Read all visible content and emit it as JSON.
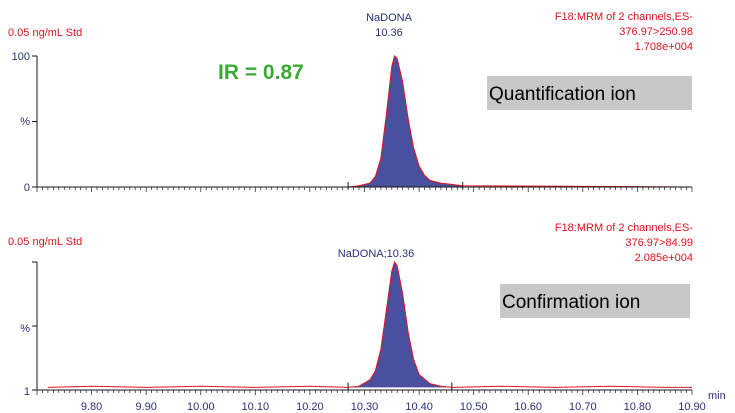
{
  "colors": {
    "trace": "#e0141e",
    "peak_fill": "#4a4f9e",
    "axis": "#1a1a1a",
    "label_blue": "#2b2f7a",
    "label_red": "#e0141e",
    "ir_green": "#3aaa35",
    "ion_box": "#c8c8c8"
  },
  "chart_data": [
    {
      "type": "line",
      "sample_label": "0.05 ng/mL Std",
      "peak_label_name": "NaDONA",
      "peak_label_rt": "10.36",
      "channel_info": [
        "F18:MRM of 2 channels,ES-",
        "376.97>250.98",
        "1.708e+004"
      ],
      "ion_label": "Quantification ion",
      "ratio_label": "IR = 0.87",
      "y_ticks": [
        "100",
        "%",
        "0"
      ],
      "xlim": [
        9.7,
        10.9
      ],
      "ylim": [
        0,
        100
      ],
      "baseline": 0,
      "peak": {
        "apex": 10.355,
        "height": 100,
        "start": 10.27,
        "end": 10.48
      },
      "x": [
        9.72,
        10.27,
        10.29,
        10.31,
        10.32,
        10.33,
        10.34,
        10.35,
        10.355,
        10.36,
        10.37,
        10.38,
        10.39,
        10.4,
        10.41,
        10.42,
        10.44,
        10.46,
        10.48,
        10.9
      ],
      "y": [
        0,
        0,
        1,
        3,
        8,
        22,
        55,
        92,
        100,
        98,
        80,
        52,
        30,
        16,
        9,
        5,
        3,
        2,
        1,
        0
      ]
    },
    {
      "type": "line",
      "sample_label": "0.05 ng/mL Std",
      "peak_label": "NaDONA;10.36",
      "channel_info": [
        "F18:MRM of 2 channels,ES-",
        "376.97>84.99",
        "2.085e+004"
      ],
      "ion_label": "Confirmation ion",
      "y_ticks": [
        "%",
        "1"
      ],
      "xlim": [
        9.7,
        10.9
      ],
      "ylim": [
        0,
        100
      ],
      "baseline": 2,
      "peak": {
        "apex": 10.355,
        "height": 100,
        "start": 10.27,
        "end": 10.46
      },
      "x": [
        9.72,
        9.8,
        9.9,
        10.0,
        10.1,
        10.2,
        10.27,
        10.29,
        10.31,
        10.32,
        10.33,
        10.34,
        10.35,
        10.355,
        10.36,
        10.37,
        10.38,
        10.39,
        10.4,
        10.42,
        10.44,
        10.46,
        10.55,
        10.65,
        10.75,
        10.85,
        10.9
      ],
      "y": [
        2,
        3,
        2,
        3,
        2,
        3,
        2,
        3,
        8,
        15,
        32,
        62,
        93,
        100,
        97,
        75,
        45,
        24,
        12,
        5,
        3,
        2,
        3,
        2,
        3,
        2,
        2
      ]
    }
  ],
  "x_axis": {
    "ticks": [
      "9.80",
      "9.90",
      "10.00",
      "10.10",
      "10.20",
      "10.30",
      "10.40",
      "10.50",
      "10.60",
      "10.70",
      "10.80",
      "10.90"
    ],
    "unit": "min"
  }
}
